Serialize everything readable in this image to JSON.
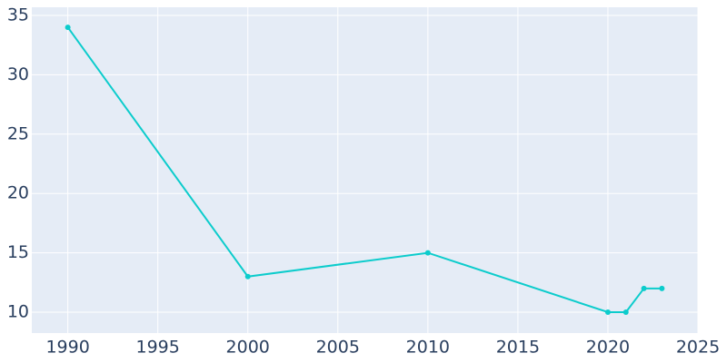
{
  "chart_data": {
    "type": "line",
    "x": [
      1990,
      2000,
      2010,
      2020,
      2021,
      2022,
      2023
    ],
    "series": [
      {
        "color": "#0ccccc",
        "values": [
          34,
          13,
          15,
          10,
          10,
          12,
          12
        ]
      }
    ],
    "xlim": [
      1988,
      2025
    ],
    "xticks": [
      1990,
      1995,
      2000,
      2005,
      2010,
      2015,
      2020,
      2025
    ],
    "ylim": [
      8.24,
      35.69
    ],
    "yticks": [
      10,
      15,
      20,
      25,
      30,
      35
    ],
    "grid": true,
    "background": "#e5ecf6"
  }
}
